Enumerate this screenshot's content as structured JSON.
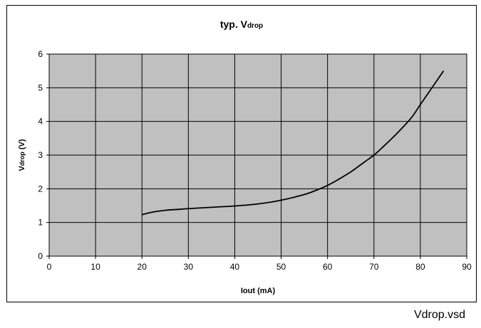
{
  "chart_data": {
    "type": "line",
    "title_main": "typ. V",
    "title_sub": "drop",
    "ylabel_main": "V",
    "ylabel_sub": "drop",
    "ylabel_unit": " (V)",
    "xlabel": "Iout (mA)",
    "xlim": [
      0,
      90
    ],
    "ylim": [
      0,
      6
    ],
    "xticks": [
      0,
      10,
      20,
      30,
      40,
      50,
      60,
      70,
      80,
      90
    ],
    "yticks": [
      0,
      1,
      2,
      3,
      4,
      5,
      6
    ],
    "grid": true,
    "plot_background": "#c0c0c0",
    "line_color": "#000000",
    "series": [
      {
        "x": [
          20,
          22,
          25,
          28,
          30,
          35,
          40,
          45,
          50,
          55,
          58,
          60,
          62,
          65,
          68,
          70,
          72,
          75,
          78,
          80,
          82,
          84,
          85
        ],
        "y": [
          1.23,
          1.3,
          1.36,
          1.39,
          1.41,
          1.45,
          1.49,
          1.55,
          1.66,
          1.83,
          1.98,
          2.1,
          2.25,
          2.5,
          2.8,
          3.0,
          3.25,
          3.65,
          4.1,
          4.5,
          4.9,
          5.3,
          5.5
        ]
      }
    ]
  },
  "footer": {
    "filename": "Vdrop.vsd"
  }
}
